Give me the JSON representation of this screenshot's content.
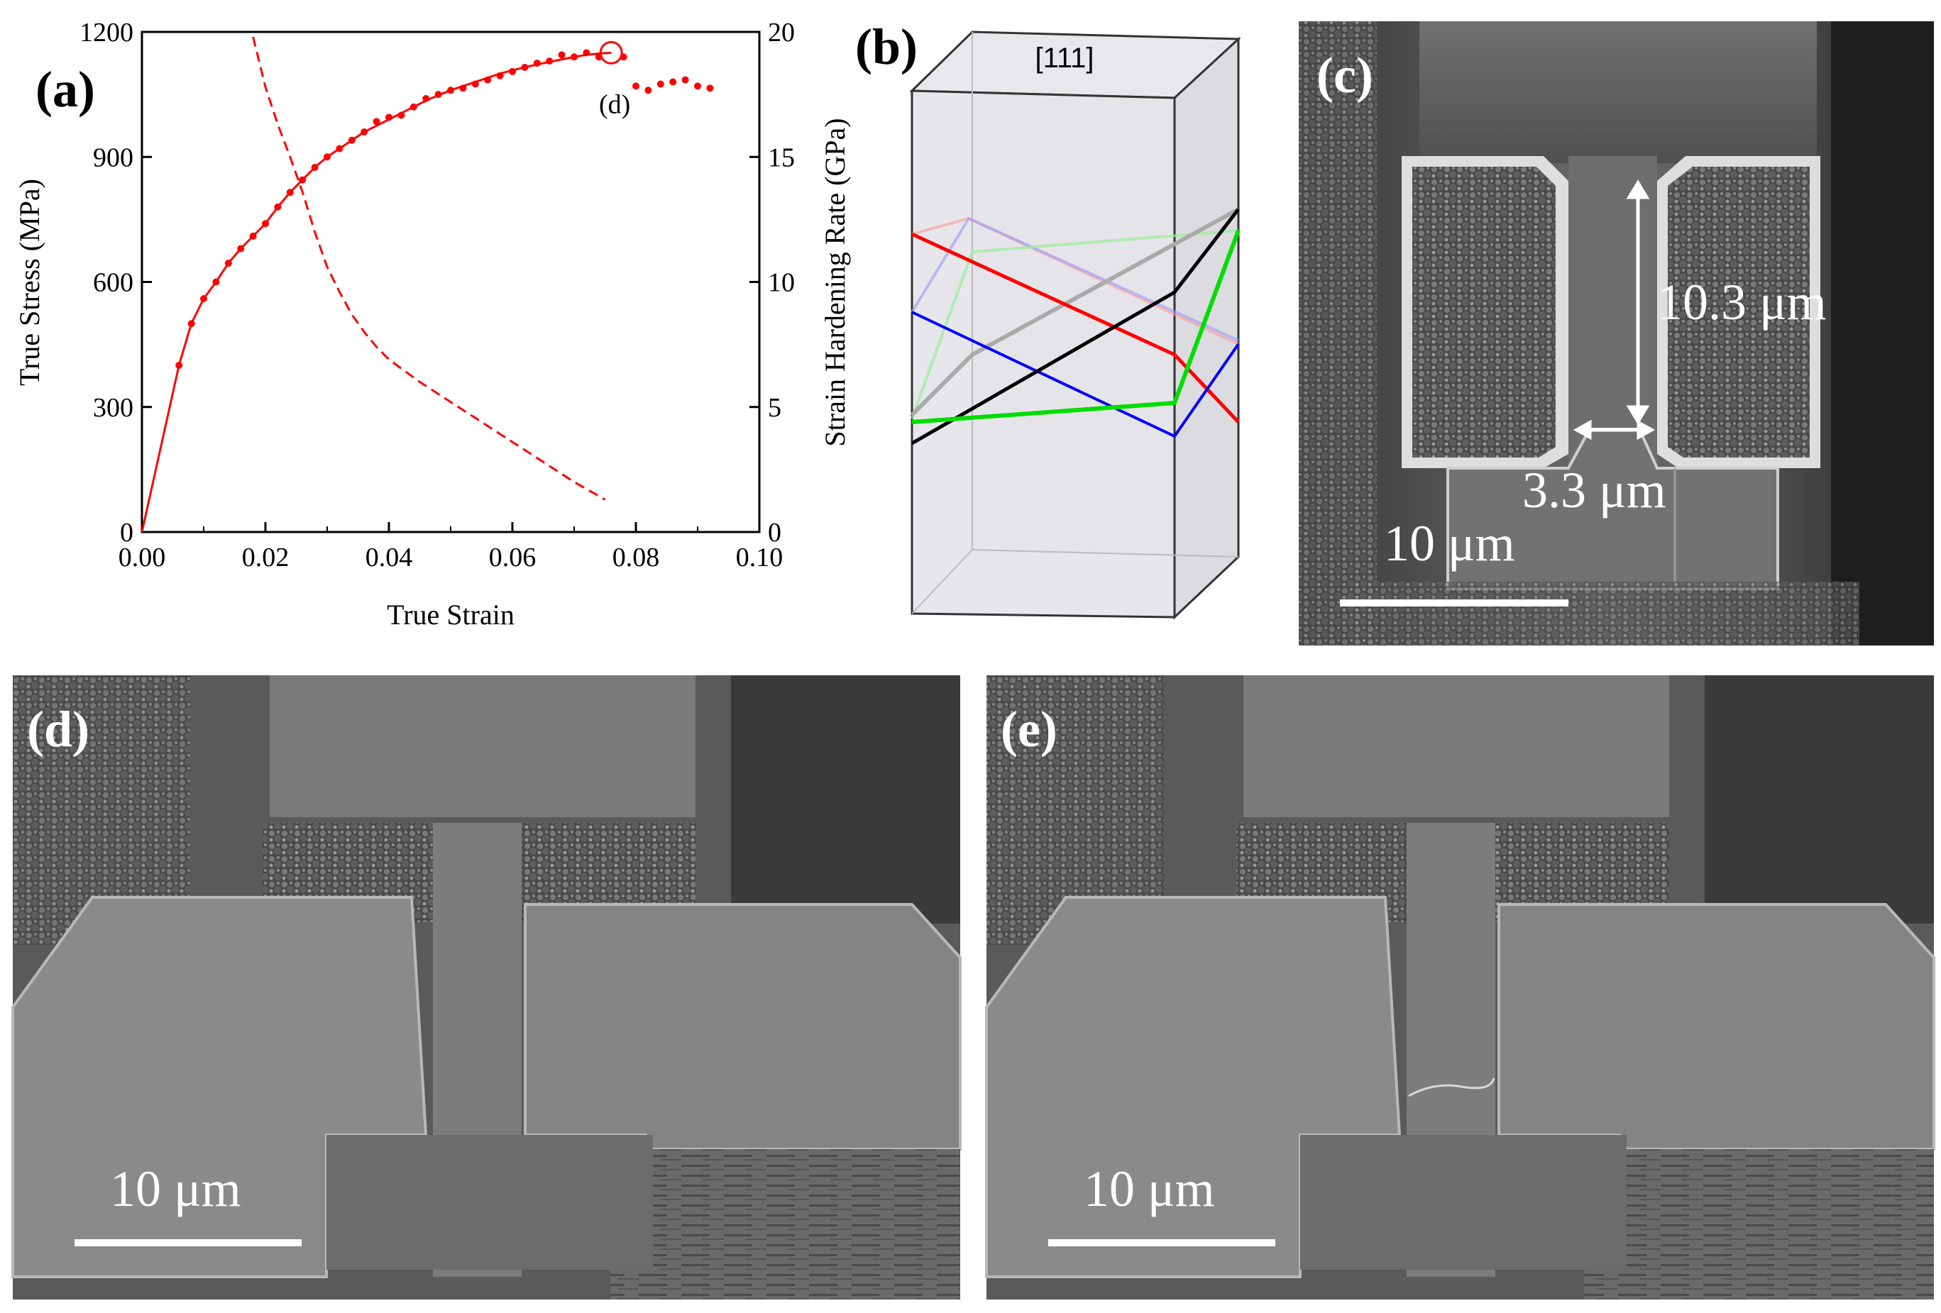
{
  "panels": {
    "a": "(a)",
    "b": "(b)",
    "c": "(c)",
    "d": "(d)",
    "e": "(e)"
  },
  "chart_data": {
    "type": "line",
    "xlabel": "True Strain",
    "ylabel": "True Stress (MPa)",
    "y2label": "Strain Hardening Rate (GPa)",
    "xlim": [
      0.0,
      0.1
    ],
    "ylim": [
      0,
      1200
    ],
    "y2lim": [
      0,
      20
    ],
    "xticks": [
      "0.00",
      "0.02",
      "0.04",
      "0.06",
      "0.08",
      "0.10"
    ],
    "yticks": [
      "0",
      "300",
      "600",
      "900",
      "1200"
    ],
    "y2ticks": [
      "0",
      "5",
      "10",
      "15",
      "20"
    ],
    "annotation": "(d)",
    "annotation_point": [
      0.076,
      1150
    ],
    "grid": false,
    "series": [
      {
        "axis": "left",
        "style": "solid-line",
        "color": "#ff0000",
        "x": [
          0.0,
          0.006,
          0.008,
          0.01,
          0.012,
          0.014,
          0.016,
          0.018,
          0.02,
          0.022,
          0.024,
          0.026,
          0.028,
          0.03,
          0.032,
          0.034,
          0.036,
          0.038,
          0.04,
          0.042,
          0.044,
          0.046,
          0.048,
          0.05,
          0.052,
          0.054,
          0.056,
          0.058,
          0.06,
          0.062,
          0.064,
          0.066,
          0.068,
          0.07,
          0.072,
          0.074,
          0.076
        ],
        "y": [
          0,
          400,
          500,
          560,
          600,
          645,
          680,
          710,
          740,
          780,
          815,
          845,
          875,
          900,
          920,
          940,
          960,
          975,
          990,
          1005,
          1020,
          1035,
          1048,
          1060,
          1070,
          1080,
          1090,
          1100,
          1108,
          1115,
          1122,
          1128,
          1134,
          1140,
          1145,
          1148,
          1150
        ]
      },
      {
        "axis": "left",
        "style": "markers",
        "color": "#ff0000",
        "x": [
          0.006,
          0.008,
          0.01,
          0.012,
          0.014,
          0.016,
          0.018,
          0.02,
          0.022,
          0.024,
          0.026,
          0.028,
          0.03,
          0.032,
          0.034,
          0.036,
          0.038,
          0.04,
          0.042,
          0.044,
          0.046,
          0.048,
          0.05,
          0.052,
          0.054,
          0.056,
          0.058,
          0.06,
          0.062,
          0.064,
          0.066,
          0.068,
          0.07,
          0.072,
          0.074,
          0.078,
          0.08,
          0.082,
          0.084,
          0.086,
          0.088,
          0.09,
          0.092
        ],
        "y": [
          400,
          500,
          560,
          600,
          645,
          680,
          710,
          740,
          780,
          815,
          845,
          875,
          900,
          920,
          940,
          960,
          985,
          995,
          1000,
          1020,
          1040,
          1050,
          1060,
          1065,
          1075,
          1085,
          1095,
          1105,
          1115,
          1125,
          1130,
          1145,
          1140,
          1150,
          1140,
          1140,
          1070,
          1060,
          1075,
          1080,
          1085,
          1070,
          1065
        ]
      },
      {
        "axis": "right",
        "style": "dashed-line",
        "color": "#ff0000",
        "x": [
          0.018,
          0.02,
          0.022,
          0.024,
          0.026,
          0.028,
          0.03,
          0.032,
          0.034,
          0.036,
          0.038,
          0.04,
          0.045,
          0.05,
          0.055,
          0.06,
          0.065,
          0.07,
          0.075
        ],
        "y": [
          19.8,
          17.8,
          16.3,
          15.0,
          13.6,
          12.0,
          10.6,
          9.6,
          8.7,
          8.0,
          7.4,
          6.9,
          6.0,
          5.2,
          4.4,
          3.6,
          2.8,
          2.0,
          1.3
        ]
      }
    ]
  },
  "crystal": {
    "direction_label": "[111]",
    "lines": [
      {
        "color": "#ff0000",
        "faded": false
      },
      {
        "color": "#0000ff",
        "faded": false
      },
      {
        "color": "#000000",
        "faded": false
      },
      {
        "color": "#00dd00",
        "faded": false
      },
      {
        "color": "#ff9999",
        "faded": true
      },
      {
        "color": "#9999ff",
        "faded": true
      },
      {
        "color": "#99ee99",
        "faded": true
      },
      {
        "color": "#aaaaaa",
        "faded": true
      }
    ]
  },
  "sem": {
    "c": {
      "height_dim": "10.3 μm",
      "width_dim": "3.3 μm",
      "scale": "10 μm"
    },
    "d": {
      "scale": "10 μm"
    },
    "e": {
      "scale": "10 μm"
    }
  }
}
